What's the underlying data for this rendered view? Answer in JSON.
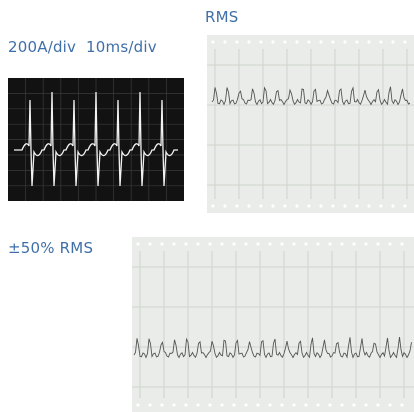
{
  "labels": {
    "top_right": "RMS",
    "scope_scale": "200A/div  10ms/div",
    "bottom": "±50% RMS"
  }
}
